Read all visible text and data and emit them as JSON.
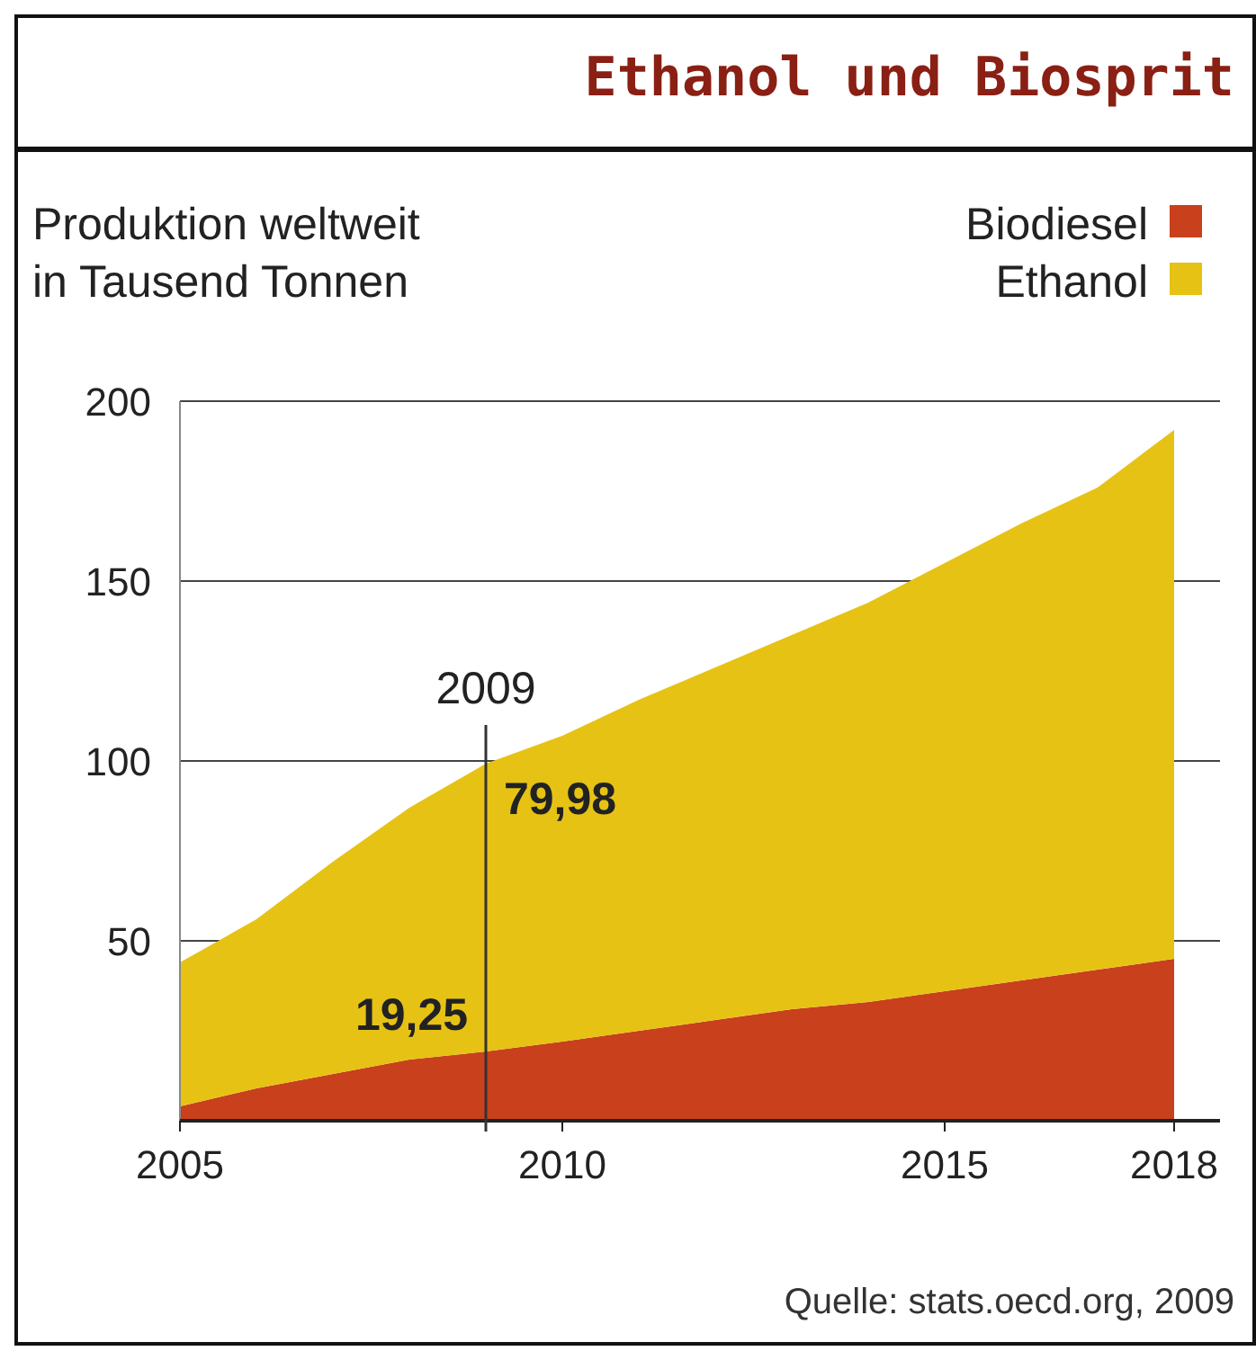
{
  "chart_data": {
    "type": "area",
    "stacked": true,
    "title": "Ethanol und Biosprit",
    "subtitle": "Produktion weltweit\nin Tausend Tonnen",
    "x": [
      2005,
      2006,
      2007,
      2008,
      2009,
      2010,
      2011,
      2012,
      2013,
      2014,
      2015,
      2016,
      2017,
      2018
    ],
    "series": [
      {
        "name": "Biodiesel",
        "color": "#c8401c",
        "values": [
          4,
          9,
          13,
          17,
          19.25,
          22,
          25,
          28,
          31,
          33,
          36,
          39,
          42,
          45
        ]
      },
      {
        "name": "Ethanol",
        "color": "#e6c214",
        "values": [
          40,
          47,
          59,
          70,
          79.98,
          85,
          92,
          98,
          104,
          111,
          119,
          127,
          134,
          147
        ]
      }
    ],
    "xlim": [
      2005,
      2018.6
    ],
    "xticks": [
      2005,
      2010,
      2015,
      2018
    ],
    "ylim": [
      0,
      200
    ],
    "yticks": [
      50,
      100,
      150,
      200
    ],
    "grid": "y",
    "legend": "top right",
    "ref_lines": [
      {
        "axis": "x",
        "value": 2009,
        "label": "2009",
        "color": "#333333"
      }
    ],
    "annotations": [
      {
        "text": "19,25",
        "x": 2009,
        "y": 19.25
      },
      {
        "text": "79,98",
        "x": 2009,
        "y": 99.23
      },
      "Quelle: stats.oecd.org, 2009"
    ]
  }
}
